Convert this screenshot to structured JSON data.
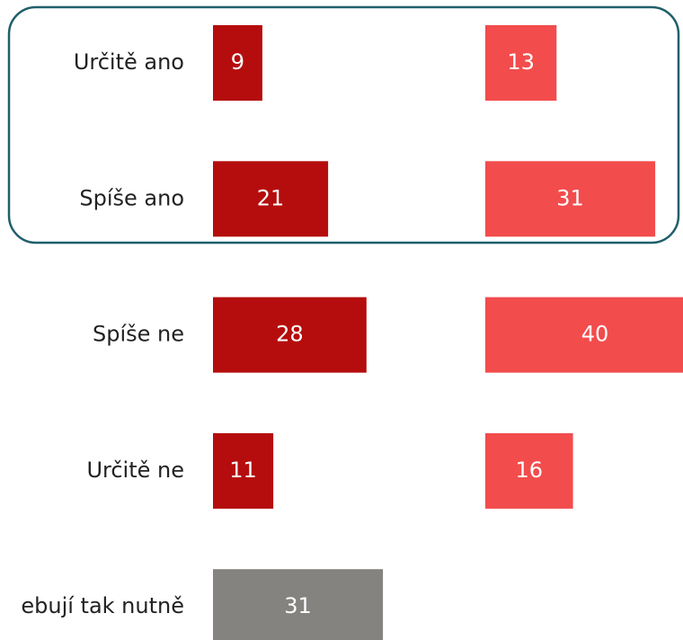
{
  "chart_data": {
    "type": "bar",
    "categories": [
      "Určitě ano",
      "Spíše ano",
      "Spíše ne",
      "Určitě ne",
      "ebují tak nutně"
    ],
    "series": [
      {
        "color": "#b50d0d",
        "point_colors": [
          "#b50d0d",
          "#b50d0d",
          "#b50d0d",
          "#b50d0d",
          "#858380"
        ],
        "values": [
          9,
          21,
          28,
          11,
          31
        ]
      },
      {
        "color": "#f24c4c",
        "values": [
          13,
          31,
          40,
          16,
          null
        ]
      }
    ]
  }
}
